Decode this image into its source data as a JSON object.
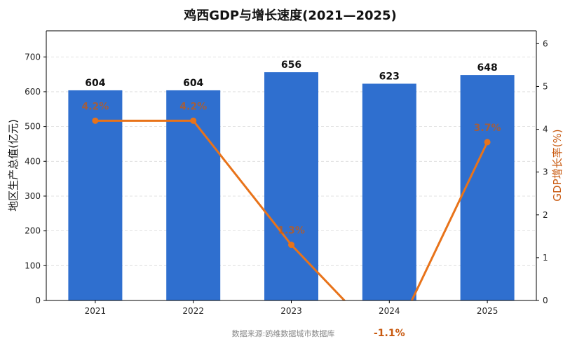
{
  "chart_data": {
    "type": "bar",
    "title": "鸡西GDP与增长速度(2021—2025)",
    "categories": [
      "2021",
      "2022",
      "2023",
      "2024",
      "2025"
    ],
    "series": [
      {
        "name": "地区生产总值(亿元)",
        "type": "bar",
        "axis": "left",
        "values": [
          604,
          604,
          656,
          623,
          648
        ],
        "color": "#2f6fcf"
      },
      {
        "name": "GDP增长率(%)",
        "type": "line",
        "axis": "right",
        "values": [
          4.2,
          4.2,
          1.3,
          -1.1,
          3.7
        ],
        "color": "#e8731a"
      }
    ],
    "bar_labels": [
      "604",
      "604",
      "656",
      "623",
      "648"
    ],
    "line_labels": [
      "4.2%",
      "4.2%",
      "1.3%",
      "-1.1%",
      "3.7%"
    ],
    "ylabel": "地区生产总值(亿元)",
    "y2label": "GDP增长率(%)",
    "ylim": [
      0,
      775
    ],
    "y2lim": [
      0,
      6.3
    ],
    "yticks": [
      0,
      100,
      200,
      300,
      400,
      500,
      600,
      700
    ],
    "y2ticks": [
      0,
      1,
      2,
      3,
      4,
      5,
      6
    ],
    "grid": true,
    "source": "数据来源:鸥维数据城市数据库"
  }
}
